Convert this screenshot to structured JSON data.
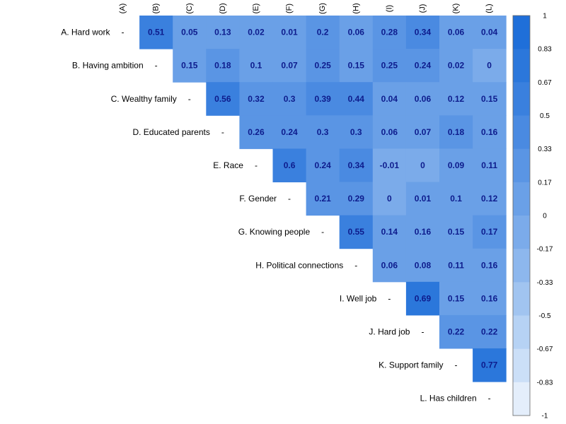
{
  "chart_data": {
    "type": "heatmap",
    "columns": [
      "(A)",
      "(B)",
      "(C)",
      "(D)",
      "(E)",
      "(F)",
      "(G)",
      "(H)",
      "(I)",
      "(J)",
      "(K)",
      "(L)"
    ],
    "rows": [
      "A. Hard work",
      "B. Having ambition",
      "C. Wealthy family",
      "D. Educated parents",
      "E. Race",
      "F. Gender",
      "G. Knowing people",
      "H. Political connections",
      "I. Well job",
      "J. Hard job",
      "K. Support family",
      "L. Has children"
    ],
    "diagonal_label": "-",
    "values": [
      [
        null,
        "0.51",
        "0.05",
        "0.13",
        "0.02",
        "0.01",
        "0.2",
        "0.06",
        "0.28",
        "0.34",
        "0.06",
        "0.04"
      ],
      [
        null,
        null,
        "0.15",
        "0.18",
        "0.1",
        "0.07",
        "0.25",
        "0.15",
        "0.25",
        "0.24",
        "0.02",
        "0"
      ],
      [
        null,
        null,
        null,
        "0.56",
        "0.32",
        "0.3",
        "0.39",
        "0.44",
        "0.04",
        "0.06",
        "0.12",
        "0.15"
      ],
      [
        null,
        null,
        null,
        null,
        "0.26",
        "0.24",
        "0.3",
        "0.3",
        "0.06",
        "0.07",
        "0.18",
        "0.16"
      ],
      [
        null,
        null,
        null,
        null,
        null,
        "0.6",
        "0.24",
        "0.34",
        "-0.01",
        "0",
        "0.09",
        "0.11"
      ],
      [
        null,
        null,
        null,
        null,
        null,
        null,
        "0.21",
        "0.29",
        "0",
        "0.01",
        "0.1",
        "0.12"
      ],
      [
        null,
        null,
        null,
        null,
        null,
        null,
        null,
        "0.55",
        "0.14",
        "0.16",
        "0.15",
        "0.17"
      ],
      [
        null,
        null,
        null,
        null,
        null,
        null,
        null,
        null,
        "0.06",
        "0.08",
        "0.11",
        "0.16"
      ],
      [
        null,
        null,
        null,
        null,
        null,
        null,
        null,
        null,
        null,
        "0.69",
        "0.15",
        "0.16"
      ],
      [
        null,
        null,
        null,
        null,
        null,
        null,
        null,
        null,
        null,
        null,
        "0.22",
        "0.22"
      ],
      [
        null,
        null,
        null,
        null,
        null,
        null,
        null,
        null,
        null,
        null,
        null,
        "0.77"
      ],
      [
        null,
        null,
        null,
        null,
        null,
        null,
        null,
        null,
        null,
        null,
        null,
        null
      ]
    ],
    "color_range": [
      -1,
      1
    ],
    "legend": {
      "placement": "right",
      "tick_labels": [
        "1",
        "0.83",
        "0.67",
        "0.5",
        "0.33",
        "0.17",
        "0",
        "-0.17",
        "-0.33",
        "-0.5",
        "-0.67",
        "-0.83",
        "-1"
      ],
      "colors": [
        "#1f6fd9",
        "#2b77db",
        "#3a80de",
        "#4a8ae1",
        "#5a95e4",
        "#6aa0e7",
        "#7babea",
        "#8db7ed",
        "#a1c4f0",
        "#b6d2f4",
        "#cbdff7",
        "#e4eefb"
      ]
    }
  }
}
